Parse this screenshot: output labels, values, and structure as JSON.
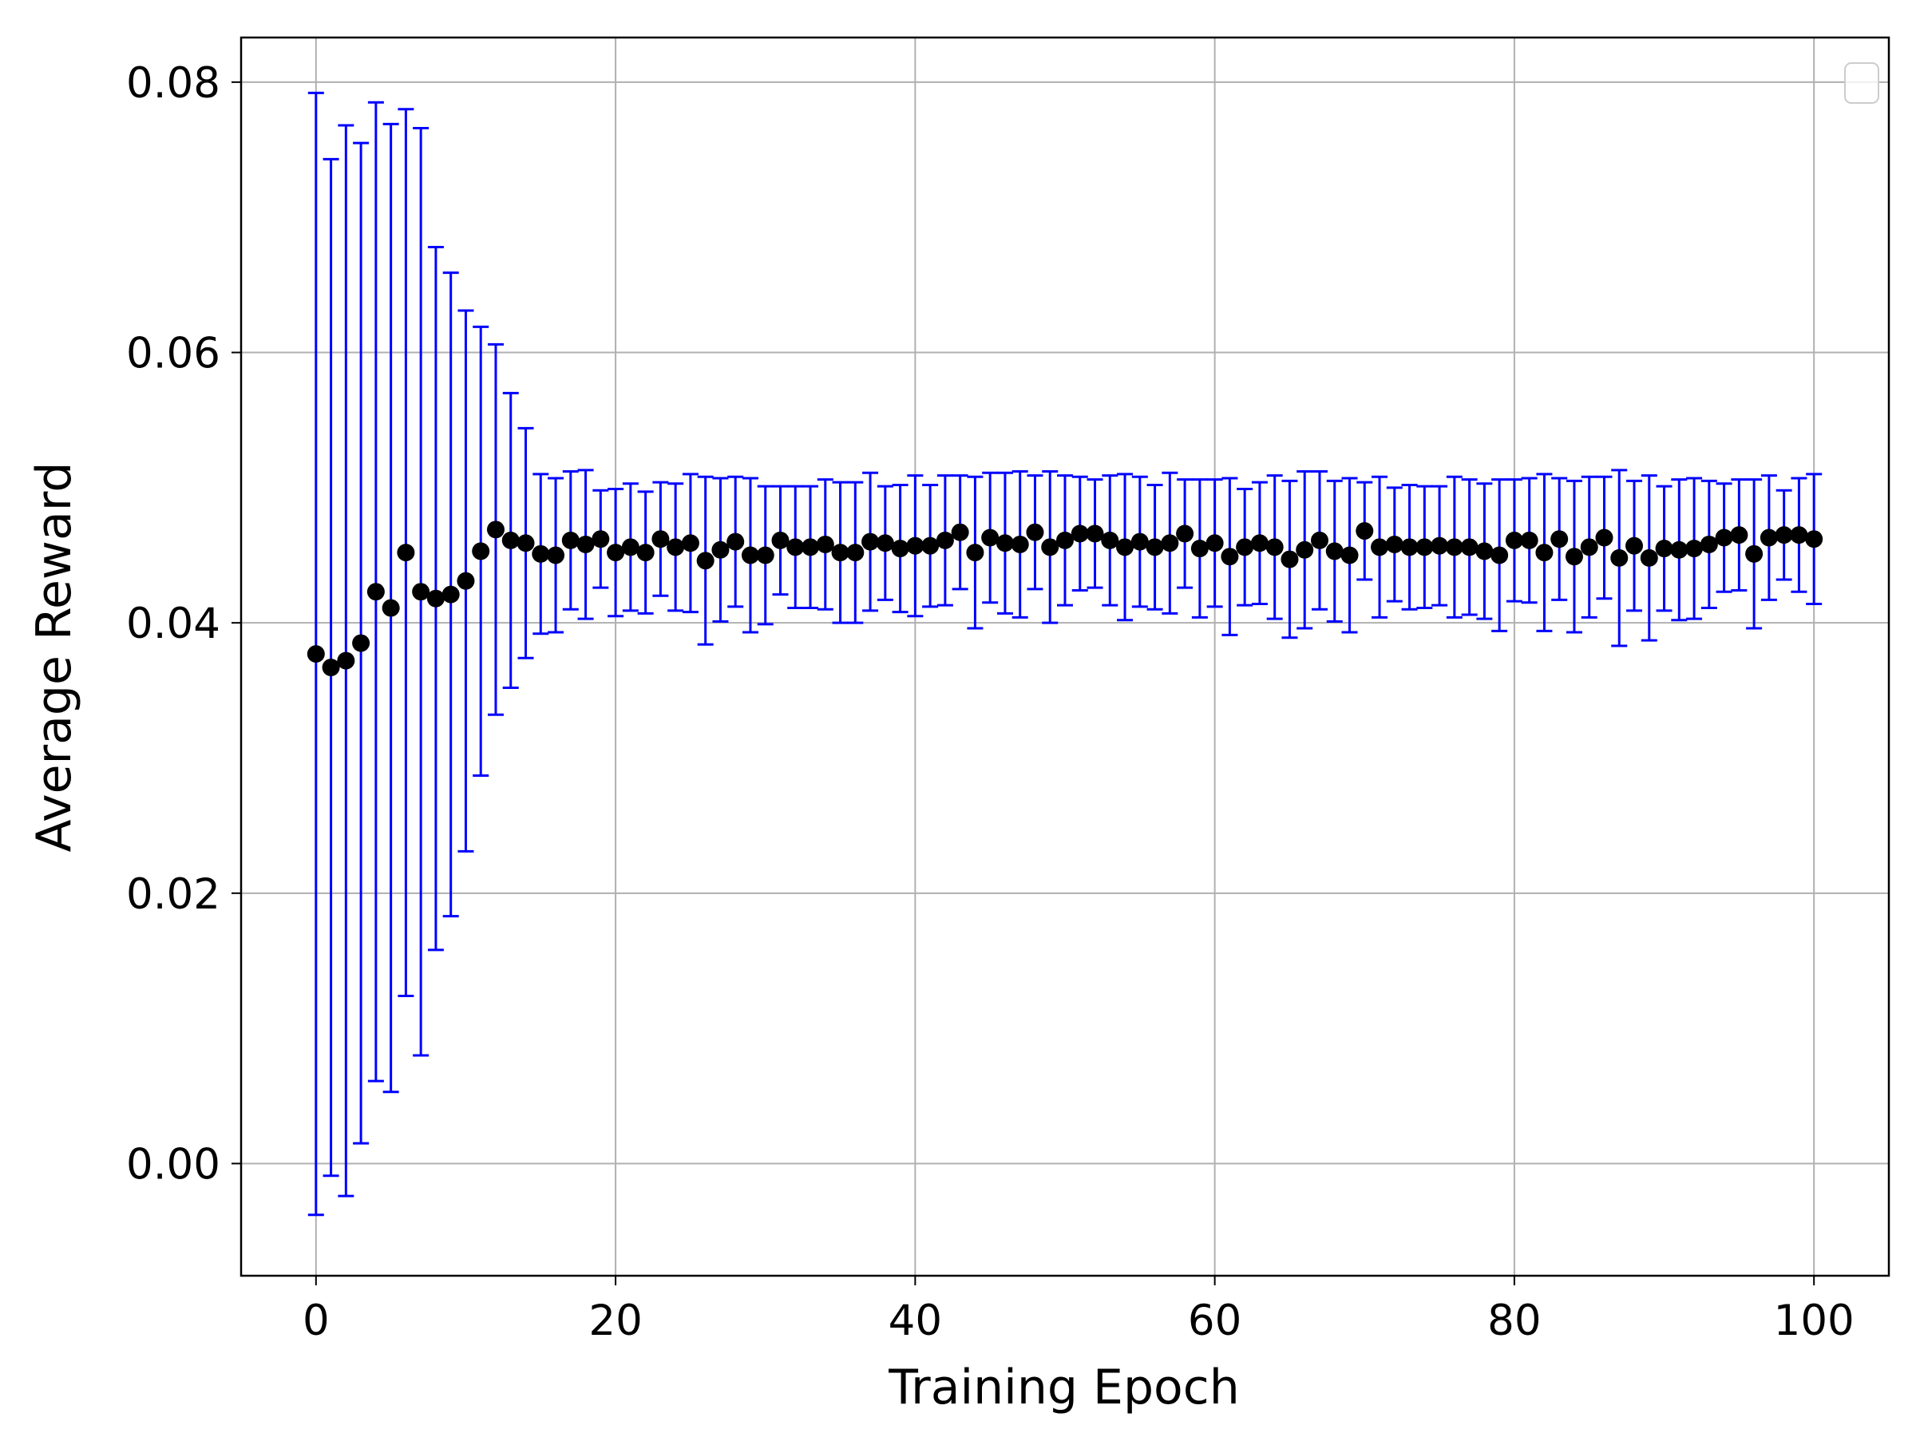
{
  "chart_data": {
    "type": "scatter",
    "title": "",
    "xlabel": "Training Epoch",
    "ylabel": "Average Reward",
    "xlim": [
      -5,
      105
    ],
    "ylim": [
      -0.0083,
      0.0833
    ],
    "grid": true,
    "legend": {
      "visible": true,
      "placement": "top-right",
      "entries": []
    },
    "x_ticks": [
      0,
      20,
      40,
      60,
      80,
      100
    ],
    "x_tick_labels": [
      "0",
      "20",
      "40",
      "60",
      "80",
      "100"
    ],
    "y_ticks": [
      0.0,
      0.02,
      0.04,
      0.06,
      0.08
    ],
    "y_tick_labels": [
      "0.00",
      "0.02",
      "0.04",
      "0.06",
      "0.08"
    ],
    "colors": {
      "marker": "#000000",
      "errorbar": "#0000ff",
      "grid": "#b0b0b0"
    },
    "series": [
      {
        "x": [
          0,
          1,
          2,
          3,
          4,
          5,
          6,
          7,
          8,
          9,
          10,
          11,
          12,
          13,
          14,
          15,
          16,
          17,
          18,
          19,
          20,
          21,
          22,
          23,
          24,
          25,
          26,
          27,
          28,
          29,
          30,
          31,
          32,
          33,
          34,
          35,
          36,
          37,
          38,
          39,
          40,
          41,
          42,
          43,
          44,
          45,
          46,
          47,
          48,
          49,
          50,
          51,
          52,
          53,
          54,
          55,
          56,
          57,
          58,
          59,
          60,
          61,
          62,
          63,
          64,
          65,
          66,
          67,
          68,
          69,
          70,
          71,
          72,
          73,
          74,
          75,
          76,
          77,
          78,
          79,
          80,
          81,
          82,
          83,
          84,
          85,
          86,
          87,
          88,
          89,
          90,
          91,
          92,
          93,
          94,
          95,
          96,
          97,
          98,
          99,
          100
        ],
        "y": [
          0.0377,
          0.0367,
          0.0372,
          0.0385,
          0.0423,
          0.0411,
          0.0452,
          0.0423,
          0.0418,
          0.0421,
          0.0431,
          0.0453,
          0.0469,
          0.0461,
          0.0459,
          0.0451,
          0.045,
          0.0461,
          0.0458,
          0.0462,
          0.0452,
          0.0456,
          0.0452,
          0.0462,
          0.0456,
          0.0459,
          0.0446,
          0.0454,
          0.046,
          0.045,
          0.045,
          0.0461,
          0.0456,
          0.0456,
          0.0458,
          0.0452,
          0.0452,
          0.046,
          0.0459,
          0.0455,
          0.0457,
          0.0457,
          0.0461,
          0.0467,
          0.0452,
          0.0463,
          0.0459,
          0.0458,
          0.0467,
          0.0456,
          0.0461,
          0.0466,
          0.0466,
          0.0461,
          0.0456,
          0.046,
          0.0456,
          0.0459,
          0.0466,
          0.0455,
          0.0459,
          0.0449,
          0.0456,
          0.0459,
          0.0456,
          0.0447,
          0.0454,
          0.0461,
          0.0453,
          0.045,
          0.0468,
          0.0456,
          0.0458,
          0.0456,
          0.0456,
          0.0457,
          0.0456,
          0.0456,
          0.0453,
          0.045,
          0.0461,
          0.0461,
          0.0452,
          0.0462,
          0.0449,
          0.0456,
          0.0463,
          0.0448,
          0.0457,
          0.0448,
          0.0455,
          0.0454,
          0.0455,
          0.0458,
          0.0463,
          0.0465,
          0.0451,
          0.0463,
          0.0465,
          0.0465,
          0.0462
        ],
        "yerr": [
          0.0415,
          0.0376,
          0.0396,
          0.037,
          0.0362,
          0.0358,
          0.0328,
          0.0343,
          0.026,
          0.0238,
          0.02,
          0.0166,
          0.0137,
          0.0109,
          0.0085,
          0.0059,
          0.0057,
          0.0051,
          0.0055,
          0.0036,
          0.0047,
          0.0047,
          0.0045,
          0.0042,
          0.0047,
          0.0051,
          0.0062,
          0.0053,
          0.0048,
          0.0057,
          0.0051,
          0.004,
          0.0045,
          0.0045,
          0.0048,
          0.0052,
          0.0052,
          0.0051,
          0.0042,
          0.0047,
          0.0052,
          0.0045,
          0.0048,
          0.0042,
          0.0056,
          0.0048,
          0.0052,
          0.0054,
          0.0042,
          0.0056,
          0.0048,
          0.0042,
          0.004,
          0.0048,
          0.0054,
          0.0048,
          0.0046,
          0.0052,
          0.004,
          0.0051,
          0.0047,
          0.0058,
          0.0043,
          0.0045,
          0.0053,
          0.0058,
          0.0058,
          0.0051,
          0.0052,
          0.0057,
          0.0036,
          0.0052,
          0.0042,
          0.0046,
          0.0045,
          0.0044,
          0.0052,
          0.005,
          0.005,
          0.0056,
          0.0045,
          0.0046,
          0.0058,
          0.0045,
          0.0056,
          0.0052,
          0.0045,
          0.0065,
          0.0048,
          0.0061,
          0.0046,
          0.0052,
          0.0052,
          0.0047,
          0.004,
          0.0041,
          0.0055,
          0.0046,
          0.0033,
          0.0042,
          0.0048
        ]
      }
    ]
  }
}
